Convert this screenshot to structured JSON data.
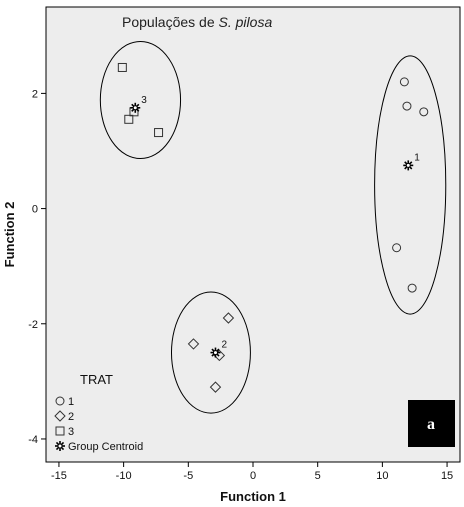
{
  "chart_data": {
    "type": "scatter",
    "title_prefix": "Populações de ",
    "title_italic": "S. pilosa",
    "xlabel": "Function 1",
    "ylabel": "Function 2",
    "xlim": [
      -16,
      16
    ],
    "ylim": [
      -4.4,
      3.5
    ],
    "xticks": [
      -15,
      -10,
      -5,
      0,
      5,
      10,
      15
    ],
    "yticks": [
      -4,
      -2,
      0,
      2
    ],
    "grid": false,
    "background": "#ededed",
    "legend": {
      "title": "TRAT",
      "placement": "bottom-left",
      "entries": [
        {
          "label": "1",
          "marker": "circle"
        },
        {
          "label": "2",
          "marker": "diamond"
        },
        {
          "label": "3",
          "marker": "square"
        },
        {
          "label": "Group Centroid",
          "marker": "star"
        }
      ]
    },
    "series": [
      {
        "name": "1",
        "marker": "circle",
        "points": [
          [
            11.7,
            2.2
          ],
          [
            11.9,
            1.78
          ],
          [
            13.2,
            1.68
          ],
          [
            11.1,
            -0.68
          ],
          [
            12.3,
            -1.38
          ]
        ]
      },
      {
        "name": "2",
        "marker": "diamond",
        "points": [
          [
            -1.9,
            -1.9
          ],
          [
            -4.6,
            -2.35
          ],
          [
            -2.6,
            -2.55
          ],
          [
            -2.9,
            -3.1
          ]
        ]
      },
      {
        "name": "3",
        "marker": "square",
        "points": [
          [
            -10.1,
            2.45
          ],
          [
            -9.6,
            1.55
          ],
          [
            -7.3,
            1.32
          ],
          [
            -9.2,
            1.68
          ]
        ]
      }
    ],
    "centroids": [
      {
        "label": "1",
        "x": 12.0,
        "y": 0.75
      },
      {
        "label": "2",
        "x": -2.9,
        "y": -2.5
      },
      {
        "label": "3",
        "x": -9.1,
        "y": 1.75
      }
    ],
    "panel_label": "a"
  }
}
